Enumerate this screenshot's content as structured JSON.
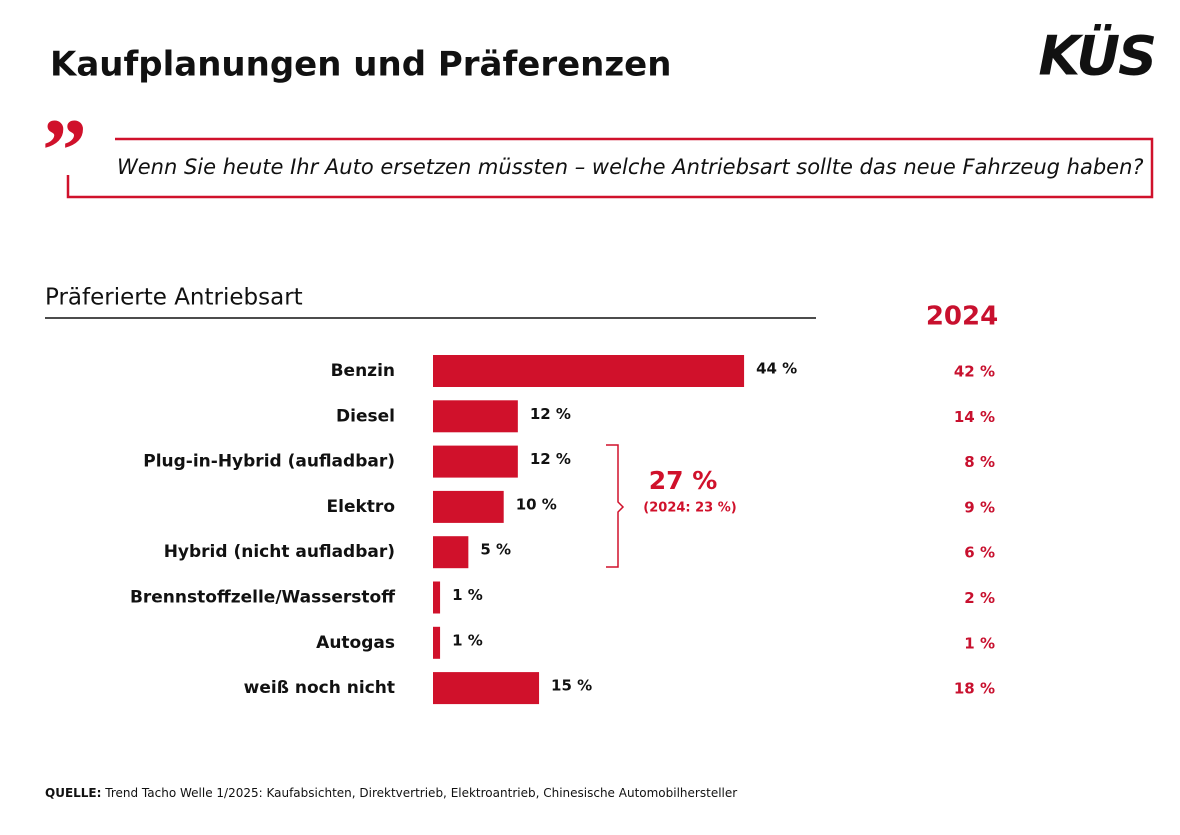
{
  "logo": "KÜS",
  "chart_data": {
    "type": "bar",
    "orientation": "horizontal",
    "title": "Kaufplanungen und Präferenzen",
    "question": "Wenn Sie heute Ihr Auto ersetzen müssten – welche Antriebsart sollte das neue Fahrzeug haben?",
    "subtitle": "Präferierte Antriebsart",
    "categories": [
      "Benzin",
      "Diesel",
      "Plug-in-Hybrid (aufladbar)",
      "Elektro",
      "Hybrid (nicht aufladbar)",
      "Brennstoffzelle/Wasserstoff",
      "Autogas",
      "weiß noch nicht"
    ],
    "values": [
      44,
      12,
      12,
      10,
      5,
      1,
      1,
      15
    ],
    "value_labels": [
      "44 %",
      "12 %",
      "12 %",
      "10 %",
      "5 %",
      "1 %",
      "1 %",
      "15 %"
    ],
    "color": "#d0112b",
    "comparison": {
      "name": "2024",
      "values": [
        42,
        14,
        8,
        9,
        6,
        2,
        1,
        18
      ],
      "value_labels": [
        "42 %",
        "14 %",
        "8 %",
        "9 %",
        "6 %",
        "2 %",
        "1 %",
        "18 %"
      ],
      "color": "#c8102e"
    },
    "annotation": {
      "value": 27,
      "label": "27 %",
      "note": "(2024: 23 %)"
    },
    "source_label": "QUELLE:",
    "source": "Trend Tacho Welle 1/2025: Kaufabsichten, Direktvertrieb, Elektroantrieb, Chinesische Automobilhersteller"
  }
}
